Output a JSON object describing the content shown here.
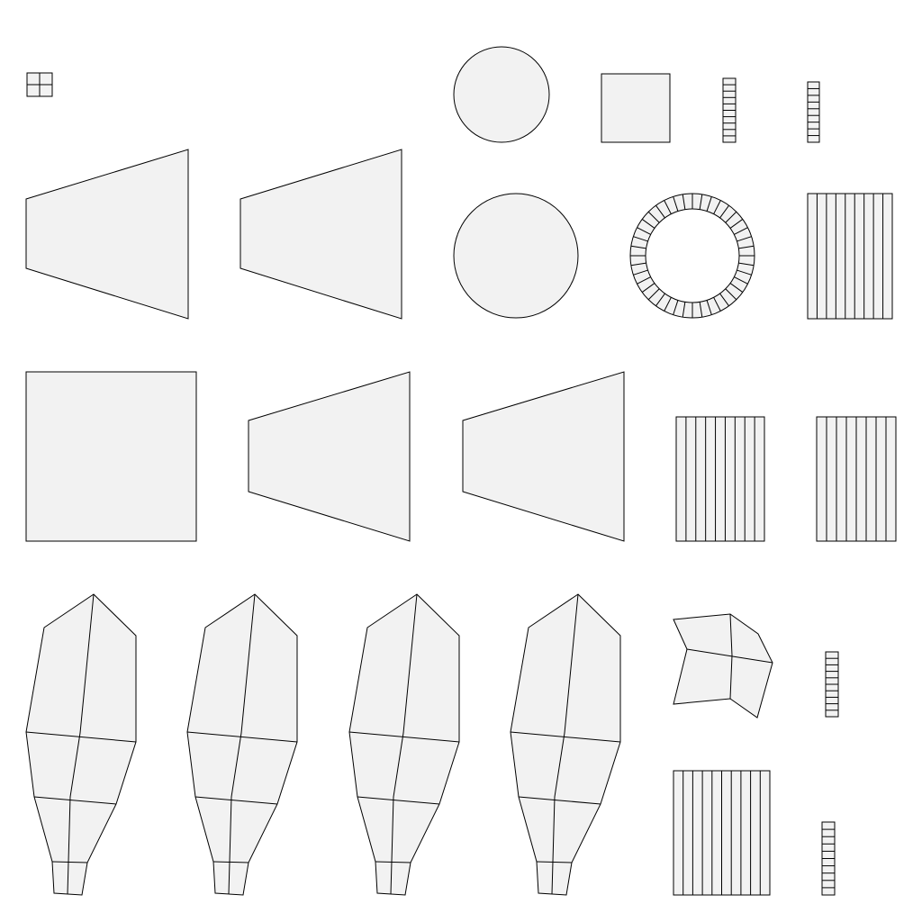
{
  "colors": {
    "background": "#ffffff",
    "island_fill": "#f2f2f2",
    "edge_stroke": "#000000"
  },
  "uv_layout": {
    "kind": "uv-unwrap-islands"
  }
}
